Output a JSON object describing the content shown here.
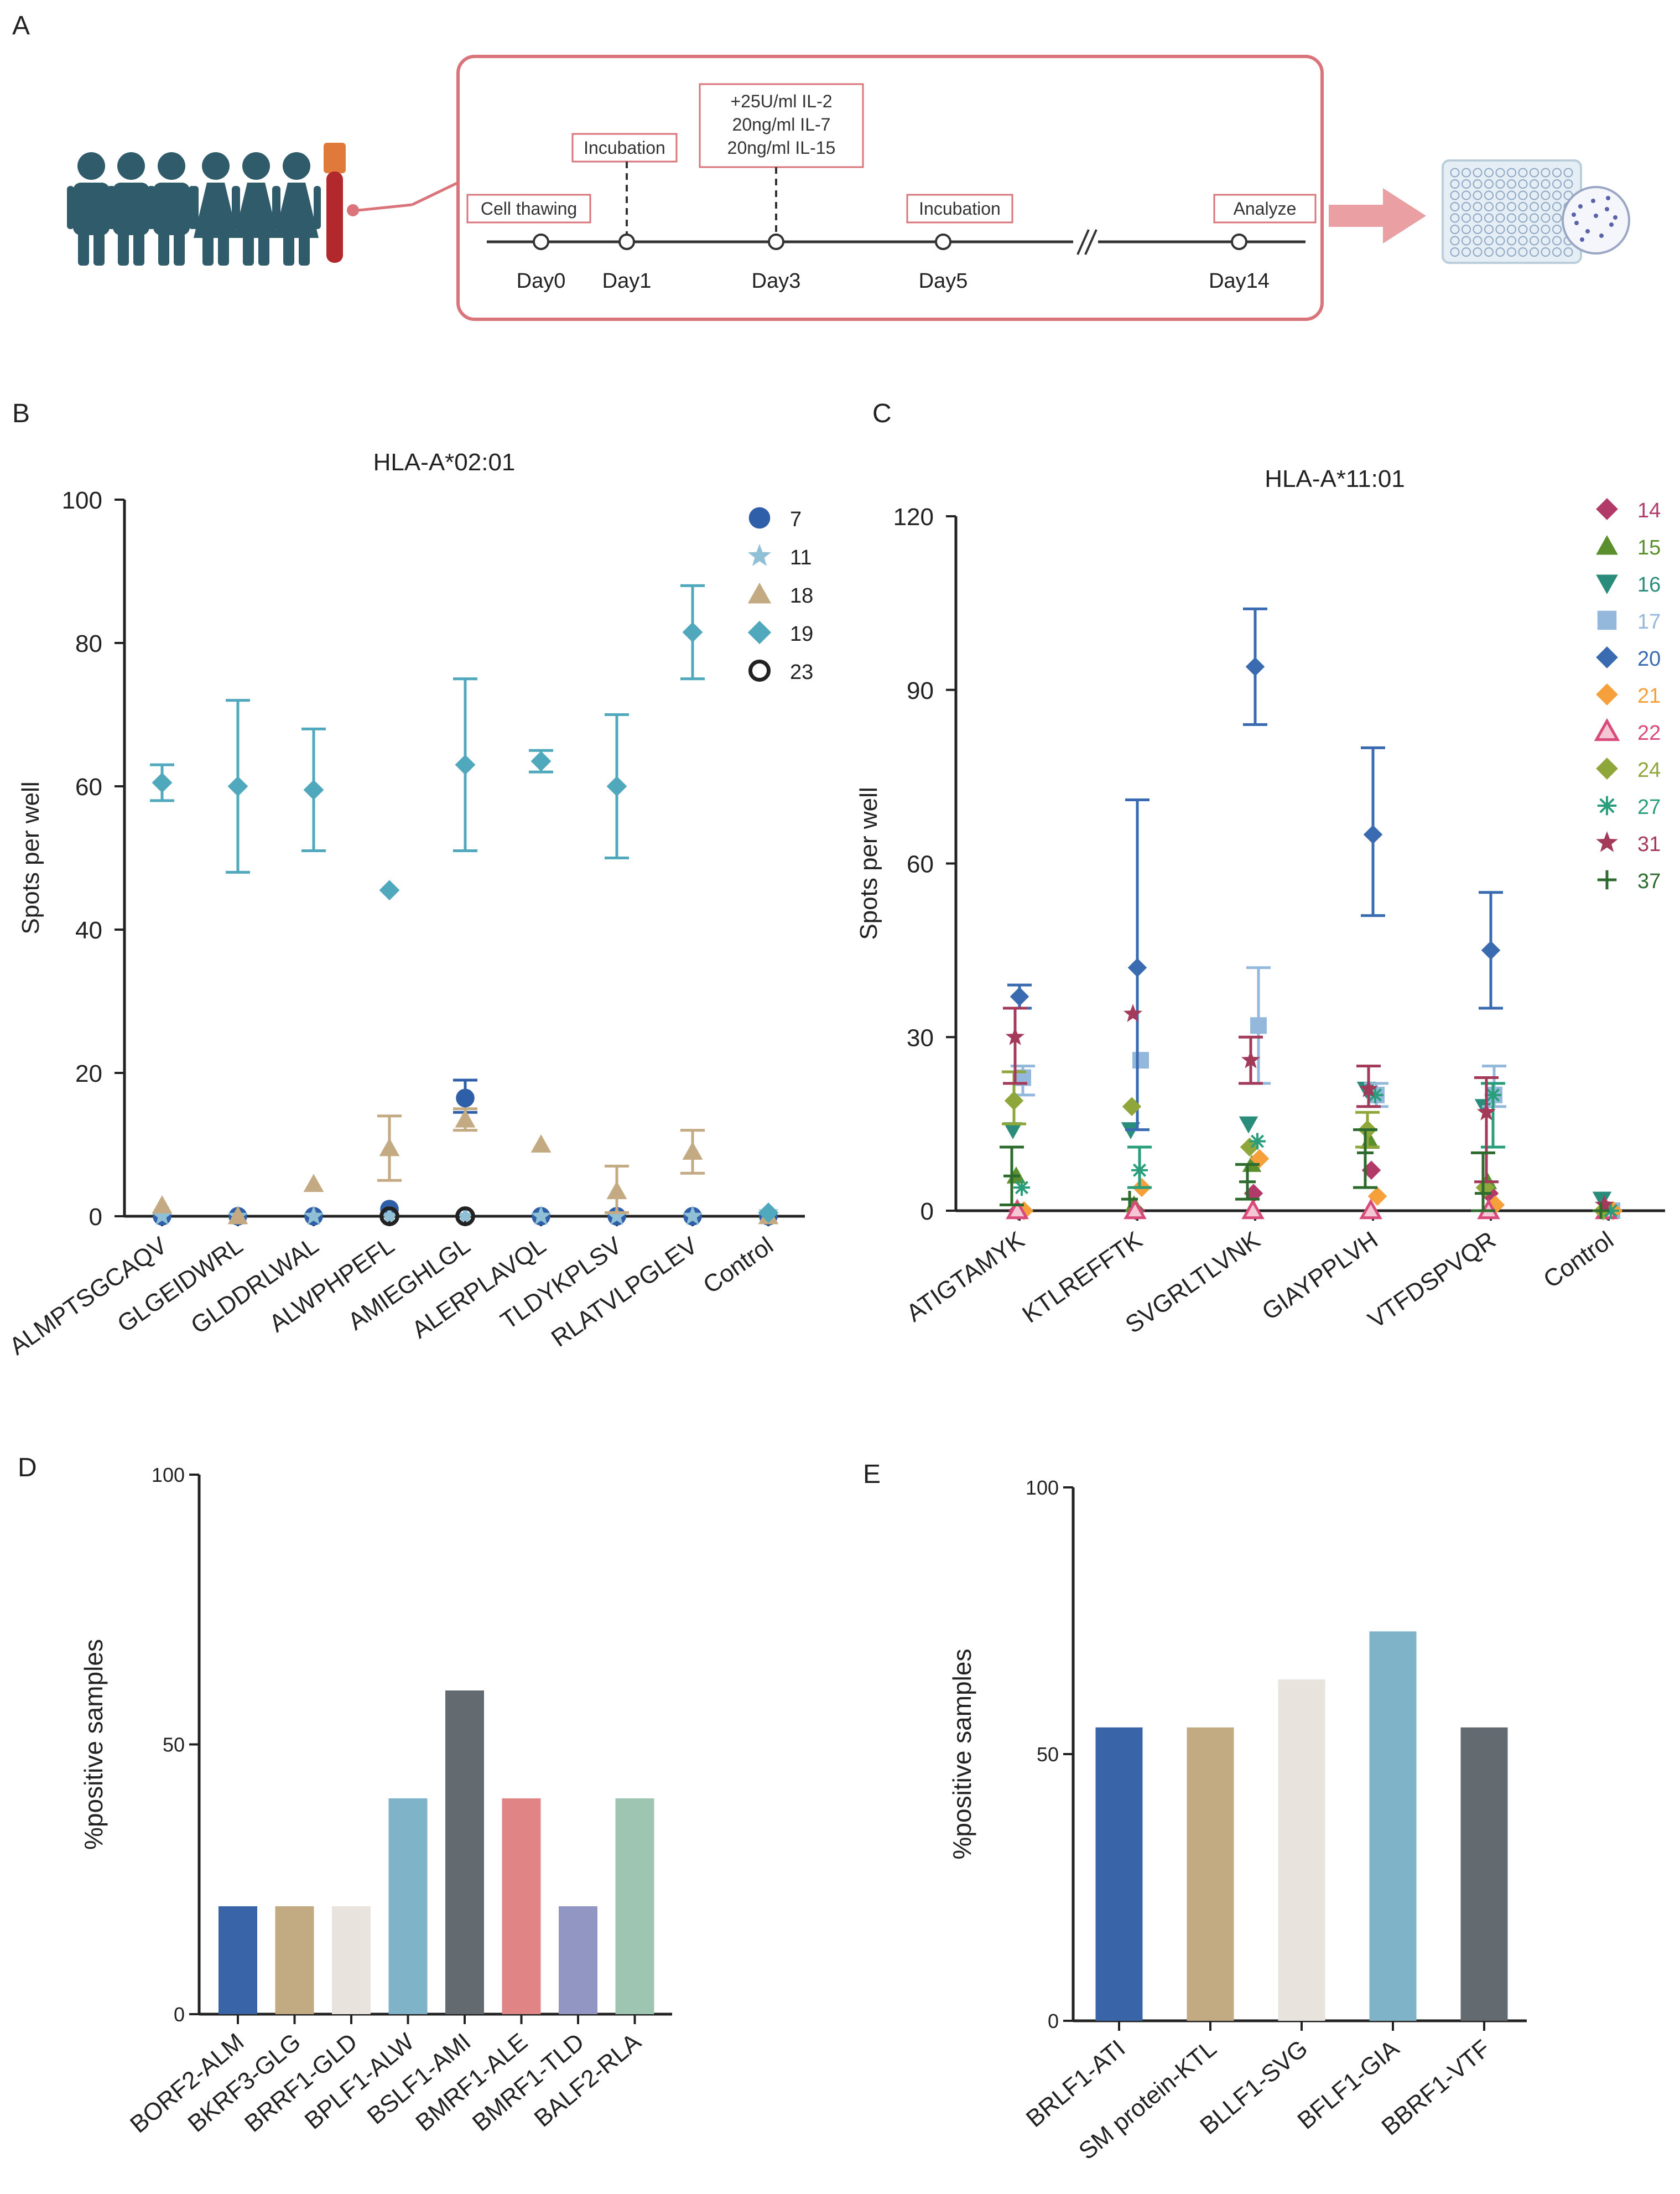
{
  "panels": {
    "a": "A",
    "b": "B",
    "c": "C",
    "d": "D",
    "e": "E"
  },
  "protocol": {
    "steps": [
      {
        "day": "Day0",
        "box": [
          "Cell thawing"
        ]
      },
      {
        "day": "Day1",
        "box": [
          "Incubation"
        ]
      },
      {
        "day": "Day3",
        "box": [
          "+25U/ml IL-2",
          "20ng/ml IL-7",
          "20ng/ml IL-15"
        ]
      },
      {
        "day": "Day5",
        "box": [
          "Incubation"
        ]
      },
      {
        "day": "Day14",
        "box": [
          "Analyze"
        ]
      }
    ],
    "colors": {
      "frame": "#d9747a",
      "donor": "#2f5b6b",
      "tube": "#b3282c",
      "cap": "#e07a3a",
      "arrow": "#eaa0a3"
    }
  },
  "chart_data": [
    {
      "panel": "B",
      "type": "scatter",
      "title": "HLA-A*02:01",
      "ylabel": "Spots per well",
      "xlabel": "",
      "ylim": [
        0,
        100
      ],
      "yticks": [
        0,
        20,
        40,
        60,
        80,
        100
      ],
      "categories": [
        "ALMPTSGCAQV",
        "GLGEIDWRL",
        "GLDDRLWAL",
        "ALWPHPEFL",
        "AMIEGHLGL",
        "ALERPLAVQL",
        "TLDYKPLSV",
        "RLATVLPGLEV",
        "Control"
      ],
      "series": [
        {
          "name": "7",
          "marker": "circle",
          "color": "#2f5fa8",
          "values": [
            0,
            0,
            0,
            1,
            16.5,
            0,
            0,
            0,
            0
          ],
          "err": [
            null,
            null,
            null,
            null,
            [
              14.5,
              19
            ],
            null,
            null,
            null,
            null
          ]
        },
        {
          "name": "11",
          "marker": "star",
          "color": "#8fc0d6",
          "values": [
            0,
            0,
            0,
            0,
            0,
            0,
            0,
            0,
            0.5
          ],
          "err": [
            null,
            null,
            null,
            null,
            null,
            null,
            null,
            null,
            null
          ]
        },
        {
          "name": "18",
          "marker": "triangle",
          "color": "#c4aa82",
          "values": [
            1.5,
            0,
            4.5,
            9.5,
            13.5,
            10,
            3.5,
            9,
            0
          ],
          "err": [
            null,
            null,
            null,
            [
              5,
              14
            ],
            [
              12,
              15
            ],
            null,
            [
              0.5,
              7
            ],
            [
              6,
              12
            ],
            null
          ]
        },
        {
          "name": "19",
          "marker": "diamond",
          "color": "#4fa8bc",
          "values": [
            60.5,
            60,
            59.5,
            45.5,
            63,
            63.5,
            60,
            81.5,
            0.5
          ],
          "err": [
            [
              58,
              63
            ],
            [
              48,
              72
            ],
            [
              51,
              68
            ],
            null,
            [
              51,
              75
            ],
            [
              62,
              65
            ],
            [
              50,
              70
            ],
            [
              75,
              88
            ],
            null
          ]
        },
        {
          "name": "23",
          "marker": "ring",
          "color": "#222222",
          "values": [
            null,
            null,
            null,
            0,
            0,
            null,
            null,
            null,
            null
          ],
          "err": [
            null,
            null,
            null,
            null,
            null,
            null,
            null,
            null,
            null
          ]
        }
      ]
    },
    {
      "panel": "C",
      "type": "scatter",
      "title": "HLA-A*11:01",
      "ylabel": "Spots per well",
      "xlabel": "",
      "ylim": [
        0,
        120
      ],
      "yticks": [
        0,
        30,
        60,
        90,
        120
      ],
      "categories": [
        "ATIGTAMYK",
        "KTLREFFTK",
        "SVGRLTLVNK",
        "GIAYPPLVH",
        "VTFDSPVQR",
        "Control"
      ],
      "series": [
        {
          "name": "14",
          "marker": "diamond",
          "color": "#b23a68",
          "values": [
            0,
            0,
            3,
            7,
            3,
            0
          ],
          "err": [
            null,
            null,
            null,
            null,
            null,
            null
          ]
        },
        {
          "name": "15",
          "marker": "triangle",
          "color": "#5b8f2e",
          "values": [
            6,
            1,
            8,
            12,
            5,
            0
          ],
          "err": [
            null,
            null,
            null,
            null,
            null,
            null
          ]
        },
        {
          "name": "16",
          "marker": "triangledown",
          "color": "#2a8c7a",
          "values": [
            14,
            14,
            15,
            21,
            18,
            2
          ],
          "err": [
            null,
            null,
            null,
            null,
            null,
            null
          ]
        },
        {
          "name": "17",
          "marker": "square",
          "color": "#93b8dc",
          "values": [
            23,
            26,
            32,
            20,
            20,
            0
          ],
          "err": [
            [
              20,
              25
            ],
            null,
            [
              22,
              42
            ],
            [
              18,
              22
            ],
            [
              18,
              25
            ],
            null
          ]
        },
        {
          "name": "20",
          "marker": "diamond",
          "color": "#3a6ab0",
          "values": [
            37,
            42,
            94,
            65,
            45,
            0
          ],
          "err": [
            [
              35,
              39
            ],
            [
              14,
              71
            ],
            [
              84,
              104
            ],
            [
              51,
              80
            ],
            [
              35,
              55
            ],
            null
          ]
        },
        {
          "name": "21",
          "marker": "diamond",
          "color": "#f5a03a",
          "values": [
            0,
            4,
            9,
            2.5,
            1,
            0
          ],
          "err": [
            null,
            null,
            null,
            null,
            null,
            null
          ]
        },
        {
          "name": "22",
          "marker": "triangleopen",
          "color": "#d94a7a",
          "values": [
            0,
            0,
            0,
            0,
            0,
            0
          ],
          "err": [
            null,
            null,
            null,
            null,
            null,
            null
          ]
        },
        {
          "name": "24",
          "marker": "diamond",
          "color": "#8ea63a",
          "values": [
            19,
            18,
            11,
            14,
            4,
            0
          ],
          "err": [
            [
              15,
              24
            ],
            null,
            null,
            [
              11,
              17
            ],
            null,
            null
          ]
        },
        {
          "name": "27",
          "marker": "asterisk",
          "color": "#2a9d7a",
          "values": [
            4,
            7,
            12,
            20,
            20,
            0
          ],
          "err": [
            null,
            [
              4,
              11
            ],
            null,
            null,
            [
              11,
              22
            ],
            null
          ]
        },
        {
          "name": "31",
          "marker": "star",
          "color": "#a33a5a",
          "values": [
            30,
            34,
            26,
            21,
            17,
            1
          ],
          "err": [
            [
              22,
              35
            ],
            null,
            [
              22,
              30
            ],
            [
              18,
              25
            ],
            [
              5,
              23
            ],
            null
          ]
        },
        {
          "name": "37",
          "marker": "plus",
          "color": "#2d6a2d",
          "values": [
            6,
            2,
            5,
            10,
            3,
            0
          ],
          "err": [
            [
              1,
              11
            ],
            null,
            [
              2,
              8
            ],
            [
              4,
              14
            ],
            [
              0,
              10
            ],
            null
          ]
        }
      ]
    },
    {
      "panel": "D",
      "type": "bar",
      "title": "",
      "ylabel": "%positive  samples",
      "xlabel": "",
      "ylim": [
        0,
        100
      ],
      "yticks": [
        0,
        50,
        100
      ],
      "categories": [
        "BORF2-ALM",
        "BKRF3-GLG",
        "BRRF1-GLD",
        "BPLF1-ALW",
        "BSLF1-AMI",
        "BMRF1-ALE",
        "BMRF1-TLD",
        "BALF2-RLA"
      ],
      "values": [
        20,
        20,
        20,
        40,
        60,
        40,
        20,
        40
      ],
      "colors": [
        "#3a64a8",
        "#c2aa82",
        "#e8e3dd",
        "#7fb4c8",
        "#646b70",
        "#e08486",
        "#9196c2",
        "#9ec4b2"
      ]
    },
    {
      "panel": "E",
      "type": "bar",
      "title": "",
      "ylabel": "%positive  samples",
      "xlabel": "",
      "ylim": [
        0,
        100
      ],
      "yticks": [
        0,
        50,
        100
      ],
      "categories": [
        "BRLF1-ATI",
        "SM protein-KTL",
        "BLLF1-SVG",
        "BFLF1-GIA",
        "BBRF1-VTF"
      ],
      "values": [
        55,
        55,
        64,
        73,
        55
      ],
      "colors": [
        "#3a64a8",
        "#c2aa82",
        "#e8e3dd",
        "#7fb4c8",
        "#646b70"
      ]
    }
  ]
}
